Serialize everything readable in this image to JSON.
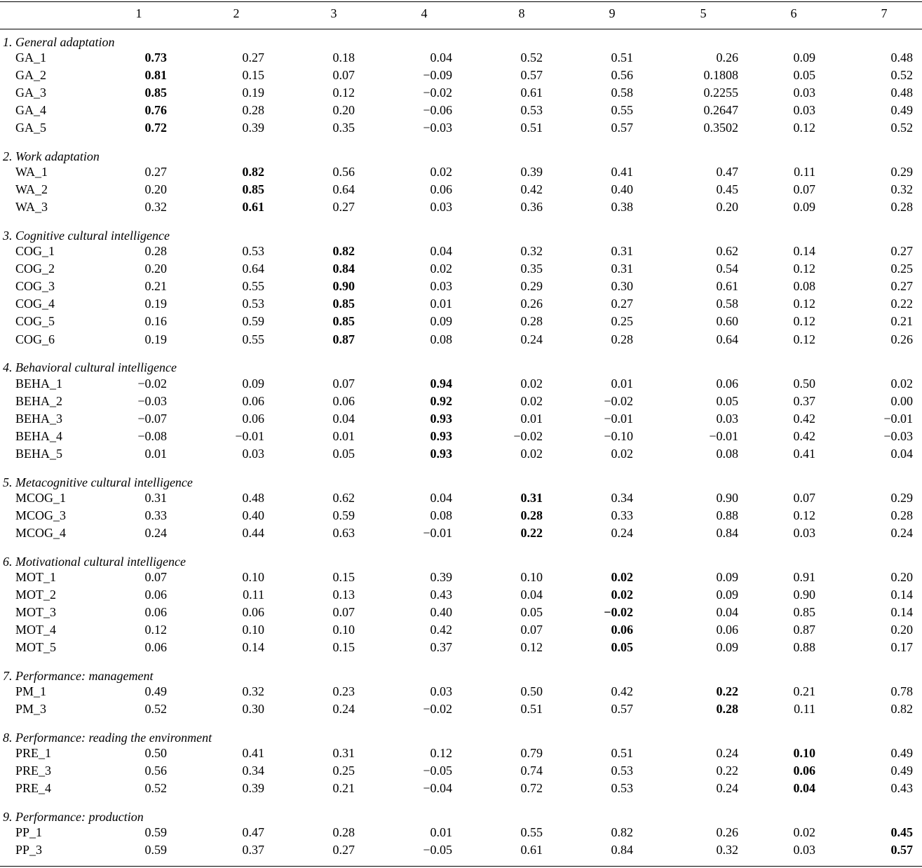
{
  "columns": [
    "1",
    "2",
    "3",
    "4",
    "8",
    "9",
    "5",
    "6",
    "7"
  ],
  "groups": [
    {
      "title": "1. General adaptation",
      "highlight_col": 0,
      "rows": [
        {
          "label": "GA_1",
          "values": [
            "0.73",
            "0.27",
            "0.18",
            "0.04",
            "0.52",
            "0.51",
            "0.26",
            "0.09",
            "0.48"
          ]
        },
        {
          "label": "GA_2",
          "values": [
            "0.81",
            "0.15",
            "0.07",
            "−0.09",
            "0.57",
            "0.56",
            "0.1808",
            "0.05",
            "0.52"
          ]
        },
        {
          "label": "GA_3",
          "values": [
            "0.85",
            "0.19",
            "0.12",
            "−0.02",
            "0.61",
            "0.58",
            "0.2255",
            "0.03",
            "0.48"
          ]
        },
        {
          "label": "GA_4",
          "values": [
            "0.76",
            "0.28",
            "0.20",
            "−0.06",
            "0.53",
            "0.55",
            "0.2647",
            "0.03",
            "0.49"
          ]
        },
        {
          "label": "GA_5",
          "values": [
            "0.72",
            "0.39",
            "0.35",
            "−0.03",
            "0.51",
            "0.57",
            "0.3502",
            "0.12",
            "0.52"
          ]
        }
      ]
    },
    {
      "title": "2. Work adaptation",
      "highlight_col": 1,
      "rows": [
        {
          "label": "WA_1",
          "values": [
            "0.27",
            "0.82",
            "0.56",
            "0.02",
            "0.39",
            "0.41",
            "0.47",
            "0.11",
            "0.29"
          ]
        },
        {
          "label": "WA_2",
          "values": [
            "0.20",
            "0.85",
            "0.64",
            "0.06",
            "0.42",
            "0.40",
            "0.45",
            "0.07",
            "0.32"
          ]
        },
        {
          "label": "WA_3",
          "values": [
            "0.32",
            "0.61",
            "0.27",
            "0.03",
            "0.36",
            "0.38",
            "0.20",
            "0.09",
            "0.28"
          ]
        }
      ]
    },
    {
      "title": "3. Cognitive cultural intelligence",
      "highlight_col": 2,
      "rows": [
        {
          "label": "COG_1",
          "values": [
            "0.28",
            "0.53",
            "0.82",
            "0.04",
            "0.32",
            "0.31",
            "0.62",
            "0.14",
            "0.27"
          ]
        },
        {
          "label": "COG_2",
          "values": [
            "0.20",
            "0.64",
            "0.84",
            "0.02",
            "0.35",
            "0.31",
            "0.54",
            "0.12",
            "0.25"
          ]
        },
        {
          "label": "COG_3",
          "values": [
            "0.21",
            "0.55",
            "0.90",
            "0.03",
            "0.29",
            "0.30",
            "0.61",
            "0.08",
            "0.27"
          ]
        },
        {
          "label": "COG_4",
          "values": [
            "0.19",
            "0.53",
            "0.85",
            "0.01",
            "0.26",
            "0.27",
            "0.58",
            "0.12",
            "0.22"
          ]
        },
        {
          "label": "COG_5",
          "values": [
            "0.16",
            "0.59",
            "0.85",
            "0.09",
            "0.28",
            "0.25",
            "0.60",
            "0.12",
            "0.21"
          ]
        },
        {
          "label": "COG_6",
          "values": [
            "0.19",
            "0.55",
            "0.87",
            "0.08",
            "0.24",
            "0.28",
            "0.64",
            "0.12",
            "0.26"
          ]
        }
      ]
    },
    {
      "title": "4. Behavioral cultural intelligence",
      "highlight_col": 3,
      "rows": [
        {
          "label": "BEHA_1",
          "values": [
            "−0.02",
            "0.09",
            "0.07",
            "0.94",
            "0.02",
            "0.01",
            "0.06",
            "0.50",
            "0.02"
          ]
        },
        {
          "label": "BEHA_2",
          "values": [
            "−0.03",
            "0.06",
            "0.06",
            "0.92",
            "0.02",
            "−0.02",
            "0.05",
            "0.37",
            "0.00"
          ]
        },
        {
          "label": "BEHA_3",
          "values": [
            "−0.07",
            "0.06",
            "0.04",
            "0.93",
            "0.01",
            "−0.01",
            "0.03",
            "0.42",
            "−0.01"
          ]
        },
        {
          "label": "BEHA_4",
          "values": [
            "−0.08",
            "−0.01",
            "0.01",
            "0.93",
            "−0.02",
            "−0.10",
            "−0.01",
            "0.42",
            "−0.03"
          ]
        },
        {
          "label": "BEHA_5",
          "values": [
            "0.01",
            "0.03",
            "0.05",
            "0.93",
            "0.02",
            "0.02",
            "0.08",
            "0.41",
            "0.04"
          ]
        }
      ]
    },
    {
      "title": "5. Metacognitive cultural intelligence",
      "highlight_col": 4,
      "rows": [
        {
          "label": "MCOG_1",
          "values": [
            "0.31",
            "0.48",
            "0.62",
            "0.04",
            "0.31",
            "0.34",
            "0.90",
            "0.07",
            "0.29"
          ]
        },
        {
          "label": "MCOG_3",
          "values": [
            "0.33",
            "0.40",
            "0.59",
            "0.08",
            "0.28",
            "0.33",
            "0.88",
            "0.12",
            "0.28"
          ]
        },
        {
          "label": "MCOG_4",
          "values": [
            "0.24",
            "0.44",
            "0.63",
            "−0.01",
            "0.22",
            "0.24",
            "0.84",
            "0.03",
            "0.24"
          ]
        }
      ]
    },
    {
      "title": "6. Motivational cultural intelligence",
      "highlight_col": 5,
      "rows": [
        {
          "label": "MOT_1",
          "values": [
            "0.07",
            "0.10",
            "0.15",
            "0.39",
            "0.10",
            "0.02",
            "0.09",
            "0.91",
            "0.20"
          ]
        },
        {
          "label": "MOT_2",
          "values": [
            "0.06",
            "0.11",
            "0.13",
            "0.43",
            "0.04",
            "0.02",
            "0.09",
            "0.90",
            "0.14"
          ]
        },
        {
          "label": "MOT_3",
          "values": [
            "0.06",
            "0.06",
            "0.07",
            "0.40",
            "0.05",
            "−0.02",
            "0.04",
            "0.85",
            "0.14"
          ]
        },
        {
          "label": "MOT_4",
          "values": [
            "0.12",
            "0.10",
            "0.10",
            "0.42",
            "0.07",
            "0.06",
            "0.06",
            "0.87",
            "0.20"
          ]
        },
        {
          "label": "MOT_5",
          "values": [
            "0.06",
            "0.14",
            "0.15",
            "0.37",
            "0.12",
            "0.05",
            "0.09",
            "0.88",
            "0.17"
          ]
        }
      ]
    },
    {
      "title": "7. Performance: management",
      "highlight_col": 6,
      "rows": [
        {
          "label": "PM_1",
          "values": [
            "0.49",
            "0.32",
            "0.23",
            "0.03",
            "0.50",
            "0.42",
            "0.22",
            "0.21",
            "0.78"
          ]
        },
        {
          "label": "PM_3",
          "values": [
            "0.52",
            "0.30",
            "0.24",
            "−0.02",
            "0.51",
            "0.57",
            "0.28",
            "0.11",
            "0.82"
          ]
        }
      ]
    },
    {
      "title": "8. Performance: reading the environment",
      "highlight_col": 7,
      "rows": [
        {
          "label": "PRE_1",
          "values": [
            "0.50",
            "0.41",
            "0.31",
            "0.12",
            "0.79",
            "0.51",
            "0.24",
            "0.10",
            "0.49"
          ]
        },
        {
          "label": "PRE_3",
          "values": [
            "0.56",
            "0.34",
            "0.25",
            "−0.05",
            "0.74",
            "0.53",
            "0.22",
            "0.06",
            "0.49"
          ]
        },
        {
          "label": "PRE_4",
          "values": [
            "0.52",
            "0.39",
            "0.21",
            "−0.04",
            "0.72",
            "0.53",
            "0.24",
            "0.04",
            "0.43"
          ]
        }
      ]
    },
    {
      "title": "9. Performance: production",
      "highlight_col": 8,
      "rows": [
        {
          "label": "PP_1",
          "values": [
            "0.59",
            "0.47",
            "0.28",
            "0.01",
            "0.55",
            "0.82",
            "0.26",
            "0.02",
            "0.45"
          ]
        },
        {
          "label": "PP_3",
          "values": [
            "0.59",
            "0.37",
            "0.27",
            "−0.05",
            "0.61",
            "0.84",
            "0.32",
            "0.03",
            "0.57"
          ]
        }
      ]
    }
  ]
}
